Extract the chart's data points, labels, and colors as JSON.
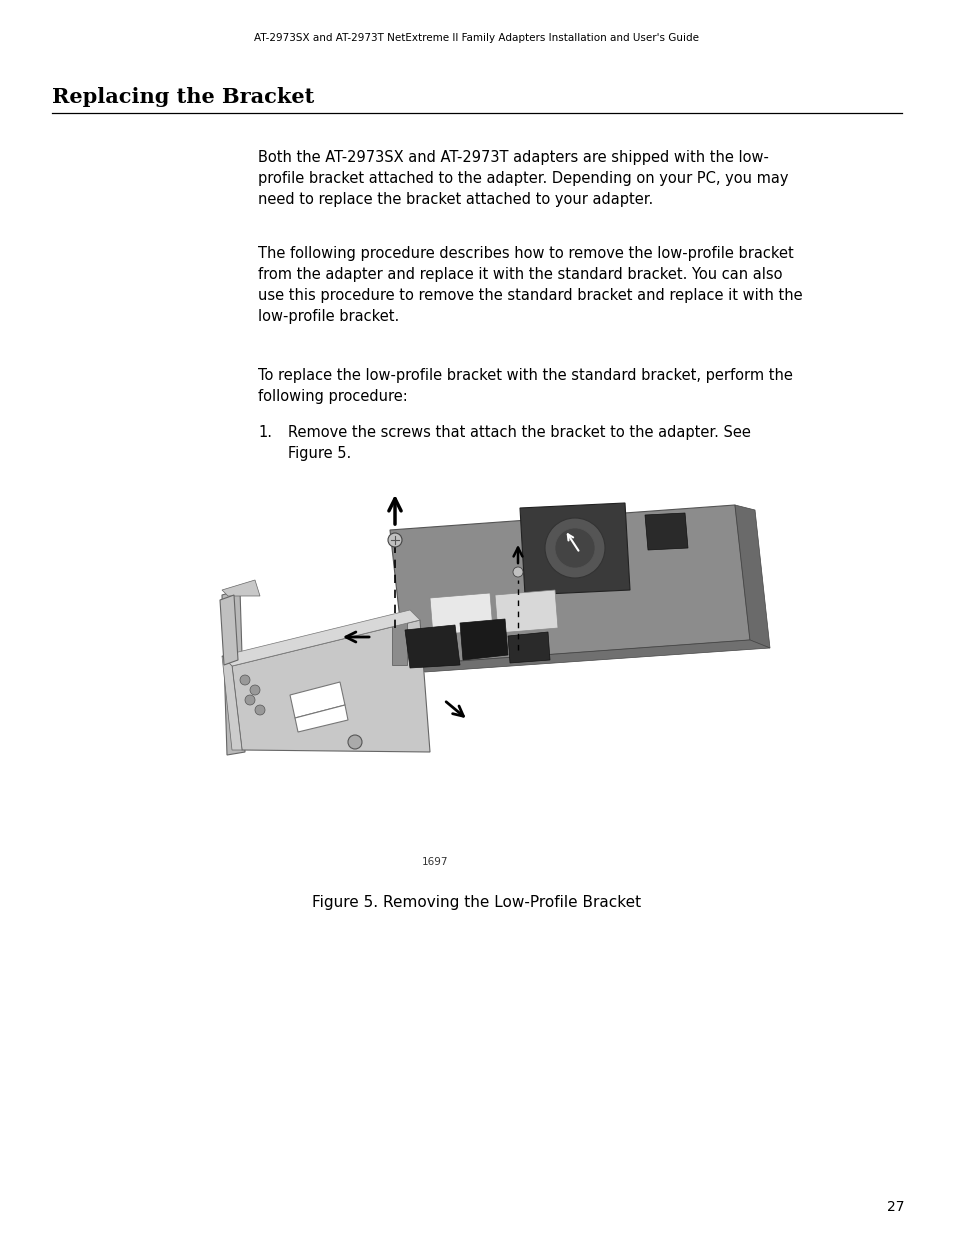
{
  "header_text": "AT-2973SX and AT-2973T NetExtreme II Family Adapters Installation and User's Guide",
  "title": "Replacing the Bracket",
  "page_number": "27",
  "para1": "Both the AT-2973SX and AT-2973T adapters are shipped with the low-\nprofile bracket attached to the adapter. Depending on your PC, you may\nneed to replace the bracket attached to your adapter.",
  "para2": "The following procedure describes how to remove the low-profile bracket\nfrom the adapter and replace it with the standard bracket. You can also\nuse this procedure to remove the standard bracket and replace it with the\nlow-profile bracket.",
  "para3": "To replace the low-profile bracket with the standard bracket, perform the\nfollowing procedure:",
  "list_num": "1.",
  "list_item": "Remove the screws that attach the bracket to the adapter. See\nFigure 5.",
  "figure_caption": "Figure 5. Removing the Low-Profile Bracket",
  "figure_label": "1697",
  "bg_color": "#ffffff",
  "text_color": "#000000",
  "title_fontsize": 15,
  "header_fontsize": 7.5,
  "body_fontsize": 10.5,
  "caption_fontsize": 11
}
